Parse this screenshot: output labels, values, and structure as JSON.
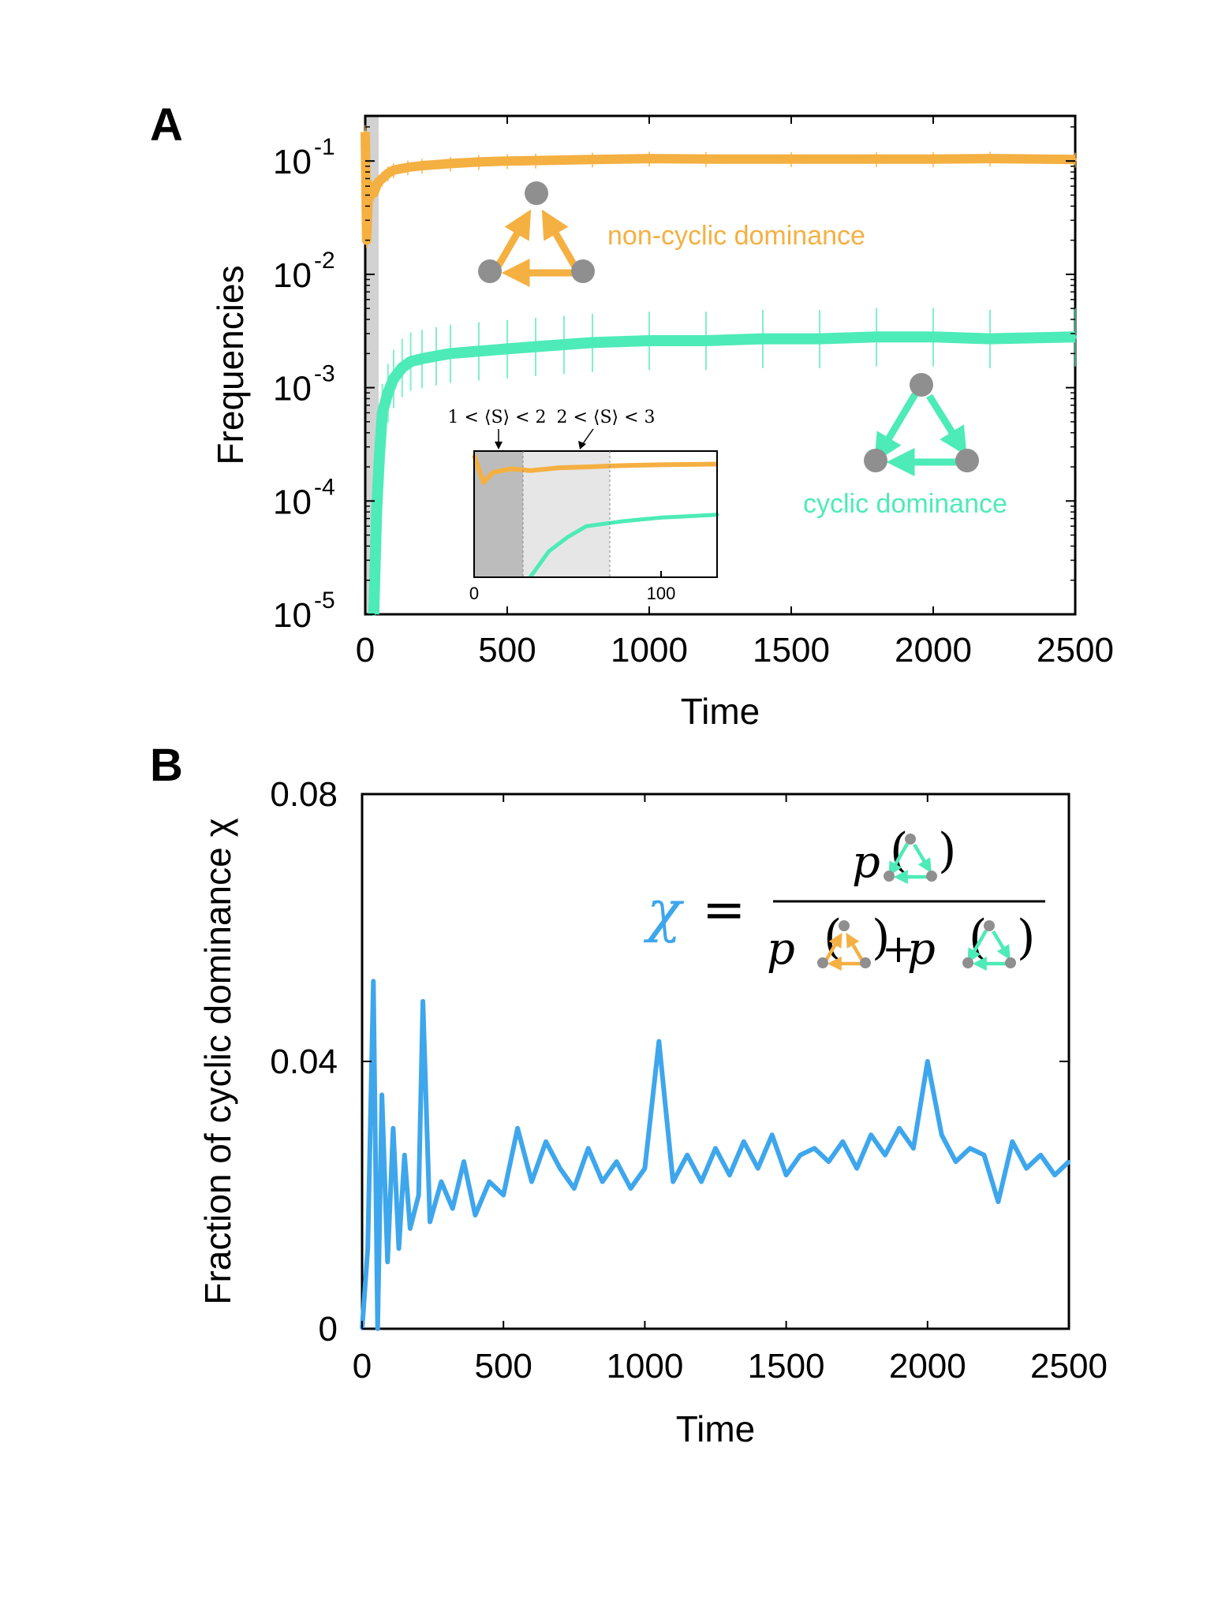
{
  "colors": {
    "noncyclic": "#F5B042",
    "cyclic": "#4DEBB7",
    "chi": "#3EA6EC",
    "node": "#8f8f8f",
    "shade_dark": "#bcbcbc",
    "shade_light": "#e6e6e6"
  },
  "icons": [
    "noncyclic-triad-icon",
    "cyclic-triad-icon"
  ],
  "chart_data": [
    {
      "panel": "A",
      "type": "line",
      "ylabel": "Frequencies",
      "xlabel": "Time",
      "x_ticks": [
        "0",
        "500",
        "1000",
        "1500",
        "2000",
        "2500"
      ],
      "y_tick_exponents": [
        "-1",
        "-2",
        "-3",
        "-4",
        "-5"
      ],
      "y_tick_base": "10",
      "xlim": [
        0,
        2500
      ],
      "ylim": [
        1e-05,
        0.25
      ],
      "yscale": "log",
      "grid": false,
      "series": [
        {
          "name": "non-cyclic dominance",
          "color": "#F5B042",
          "error_bars": true,
          "x": [
            0,
            5,
            10,
            20,
            30,
            45,
            60,
            80,
            100,
            150,
            200,
            300,
            400,
            500,
            600,
            800,
            1000,
            1200,
            1500,
            1800,
            2000,
            2200,
            2500
          ],
          "y": [
            0.18,
            0.02,
            0.045,
            0.06,
            0.052,
            0.065,
            0.07,
            0.078,
            0.083,
            0.088,
            0.091,
            0.095,
            0.098,
            0.1,
            0.101,
            0.103,
            0.105,
            0.104,
            0.104,
            0.104,
            0.104,
            0.105,
            0.103
          ]
        },
        {
          "name": "cyclic dominance",
          "color": "#4DEBB7",
          "error_bars": true,
          "x": [
            30,
            40,
            50,
            60,
            80,
            100,
            130,
            160,
            200,
            250,
            300,
            400,
            500,
            600,
            700,
            800,
            1000,
            1200,
            1400,
            1600,
            1800,
            2000,
            2200,
            2500
          ],
          "y": [
            1e-05,
            8e-05,
            0.00025,
            0.0006,
            0.0009,
            0.0012,
            0.0015,
            0.0017,
            0.0018,
            0.0019,
            0.002,
            0.0021,
            0.0022,
            0.0023,
            0.0024,
            0.0025,
            0.0026,
            0.0026,
            0.0027,
            0.0027,
            0.0028,
            0.0028,
            0.0027,
            0.0028
          ]
        }
      ],
      "annotations": [
        "non-cyclic dominance",
        "cyclic dominance"
      ],
      "inset": {
        "x_ticks": [
          "0",
          "100"
        ],
        "xlim": [
          0,
          130
        ],
        "regions": [
          {
            "label": "1 < ⟨S⟩ < 2",
            "x_start": 0,
            "x_end": 26
          },
          {
            "label": "2 < ⟨S⟩ < 3",
            "x_start": 26,
            "x_end": 72
          }
        ]
      }
    },
    {
      "panel": "B",
      "type": "line",
      "ylabel": "Fraction of cyclic dominance χ",
      "xlabel": "Time",
      "x_ticks": [
        "0",
        "500",
        "1000",
        "1500",
        "2000",
        "2500"
      ],
      "y_ticks": [
        "0.08",
        "0.04",
        "0"
      ],
      "xlim": [
        0,
        2500
      ],
      "ylim": [
        0,
        0.08
      ],
      "grid": false,
      "formula": {
        "symbol": "χ",
        "equals": "=",
        "p": "p",
        "plus": "+"
      },
      "series": [
        {
          "name": "χ",
          "color": "#3EA6EC",
          "x": [
            0,
            20,
            40,
            55,
            70,
            90,
            110,
            130,
            150,
            170,
            200,
            215,
            240,
            280,
            320,
            360,
            400,
            450,
            500,
            550,
            600,
            650,
            700,
            750,
            800,
            850,
            900,
            950,
            1000,
            1050,
            1100,
            1150,
            1200,
            1250,
            1300,
            1350,
            1400,
            1450,
            1500,
            1550,
            1600,
            1650,
            1700,
            1750,
            1800,
            1850,
            1900,
            1950,
            2000,
            2050,
            2100,
            2150,
            2200,
            2250,
            2300,
            2350,
            2400,
            2450,
            2500
          ],
          "y": [
            0.0,
            0.012,
            0.052,
            0.0,
            0.035,
            0.01,
            0.03,
            0.012,
            0.026,
            0.015,
            0.02,
            0.049,
            0.016,
            0.022,
            0.018,
            0.025,
            0.017,
            0.022,
            0.02,
            0.03,
            0.022,
            0.028,
            0.024,
            0.021,
            0.027,
            0.022,
            0.025,
            0.021,
            0.024,
            0.043,
            0.022,
            0.026,
            0.022,
            0.027,
            0.023,
            0.028,
            0.024,
            0.029,
            0.023,
            0.026,
            0.027,
            0.025,
            0.028,
            0.024,
            0.029,
            0.026,
            0.03,
            0.027,
            0.04,
            0.029,
            0.025,
            0.027,
            0.026,
            0.019,
            0.028,
            0.024,
            0.026,
            0.023,
            0.025
          ]
        }
      ]
    }
  ]
}
